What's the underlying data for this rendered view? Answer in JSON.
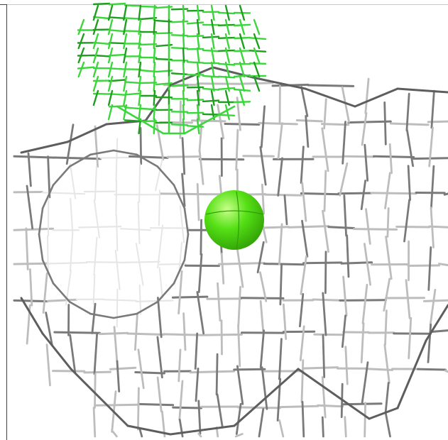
{
  "scene": {
    "kind": "electron-density-mesh",
    "colors": {
      "background": "#ffffff",
      "mesh_light": "#e6e6e6",
      "mesh_mid": "#bdbdbd",
      "mesh_dark": "#7a7a7a",
      "mesh_edge": "#5e5e5e",
      "difference_mesh": "#3bd63b",
      "difference_mesh_dark": "#1f9e1f",
      "ion_sphere": "#55e015",
      "ion_sphere_highlight": "#c8ff8a",
      "ion_sphere_shadow": "#2f9d05"
    },
    "objects": [
      {
        "name": "gray-density-mesh",
        "icon": "wireframe-mesh-icon"
      },
      {
        "name": "green-difference-mesh",
        "icon": "wireframe-cage-icon"
      },
      {
        "name": "ion-sphere",
        "icon": "sphere-icon"
      }
    ]
  }
}
